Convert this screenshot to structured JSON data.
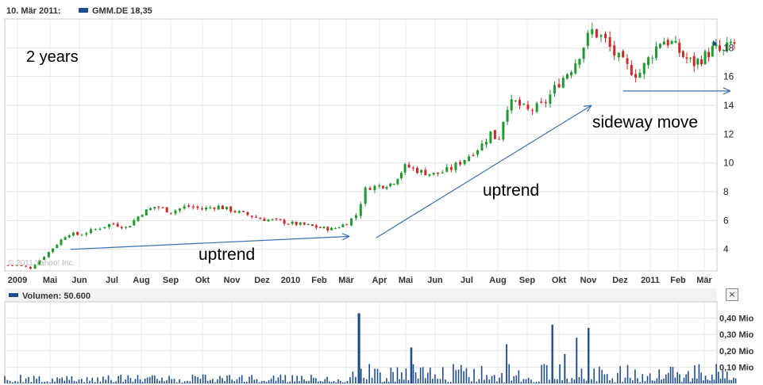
{
  "header": {
    "date": "10. Mär 2011:",
    "ticker_label": "GMM.DE 18,35",
    "series_color": "#1f4e8c"
  },
  "watermark": "© 2011 Yahoo! Inc.",
  "annotations": {
    "period": "2 years",
    "uptrend_1": "uptrend",
    "uptrend_2": "uptrend",
    "sideways": "sideway move"
  },
  "volume_panel": {
    "label": "Volumen: 50.600",
    "close_icon": "close-icon",
    "close_glyph": "×"
  },
  "chart_data": [
    {
      "type": "candlestick",
      "ylim": [
        2.5,
        20
      ],
      "y_ticks": [
        "4",
        "6",
        "8",
        "10",
        "12",
        "14",
        "16",
        "18"
      ],
      "x_ticks": [
        "2009",
        "Mai",
        "Jun",
        "Jul",
        "Aug",
        "Sep",
        "Okt",
        "Nov",
        "Dez",
        "2010",
        "Feb",
        "Mär",
        "Apr",
        "Mai",
        "Jun",
        "Jul",
        "Aug",
        "Sep",
        "Okt",
        "Nov",
        "Dez",
        "2011",
        "Feb",
        "Mär"
      ],
      "up_color": "#1e9a2e",
      "down_color": "#cc2a2a",
      "price_path": [
        [
          0,
          2.9
        ],
        [
          0.4,
          2.7
        ],
        [
          0.8,
          3.5
        ],
        [
          1.2,
          4.3
        ],
        [
          1.6,
          5.1
        ],
        [
          2.0,
          5.0
        ],
        [
          2.5,
          5.4
        ],
        [
          3.0,
          5.8
        ],
        [
          3.5,
          5.5
        ],
        [
          4.0,
          6.5
        ],
        [
          4.5,
          7.0
        ],
        [
          5.0,
          6.6
        ],
        [
          5.5,
          7.0
        ],
        [
          6.0,
          6.8
        ],
        [
          6.5,
          7.0
        ],
        [
          7.0,
          6.7
        ],
        [
          7.5,
          6.4
        ],
        [
          8.0,
          6.1
        ],
        [
          8.5,
          6.0
        ],
        [
          9.0,
          5.8
        ],
        [
          9.5,
          5.7
        ],
        [
          10.0,
          5.5
        ],
        [
          10.5,
          5.4
        ],
        [
          11.0,
          5.8
        ],
        [
          11.3,
          6.4
        ],
        [
          11.6,
          8.3
        ],
        [
          12.0,
          8.4
        ],
        [
          12.5,
          8.6
        ],
        [
          13.0,
          9.8
        ],
        [
          13.5,
          9.4
        ],
        [
          14.0,
          9.2
        ],
        [
          14.5,
          9.6
        ],
        [
          15.0,
          10.4
        ],
        [
          15.5,
          11.3
        ],
        [
          15.8,
          12.2
        ],
        [
          16.0,
          11.4
        ],
        [
          16.3,
          14.0
        ],
        [
          16.6,
          14.2
        ],
        [
          17.0,
          13.6
        ],
        [
          17.5,
          14.0
        ],
        [
          18.0,
          15.6
        ],
        [
          18.5,
          16.8
        ],
        [
          18.8,
          18.0
        ],
        [
          19.1,
          19.2
        ],
        [
          19.5,
          18.6
        ],
        [
          19.8,
          17.6
        ],
        [
          20.2,
          16.7
        ],
        [
          20.6,
          16.1
        ],
        [
          21.0,
          17.4
        ],
        [
          21.4,
          18.6
        ],
        [
          21.8,
          18.3
        ],
        [
          22.2,
          17.4
        ],
        [
          22.6,
          16.9
        ],
        [
          23.0,
          17.4
        ],
        [
          23.4,
          18.0
        ],
        [
          23.7,
          17.6
        ],
        [
          24.0,
          18.3
        ]
      ],
      "candle_count": 176,
      "trend_lines": [
        {
          "from": [
            1.7,
            4.0
          ],
          "to": [
            11.1,
            4.9
          ]
        },
        {
          "from": [
            11.9,
            4.8
          ],
          "to": [
            19.1,
            14.0
          ]
        },
        {
          "from": [
            20.1,
            15.0
          ],
          "to": [
            24.0,
            15.0
          ]
        }
      ]
    },
    {
      "type": "bar",
      "ylim": [
        0,
        0.5
      ],
      "y_ticks": [
        "0,10 Mio",
        "0,20 Mio",
        "0,30 Mio",
        "0,40 Mio"
      ],
      "spikes": [
        {
          "x": 11.4,
          "value": 0.43
        },
        {
          "x": 17.8,
          "value": 0.36
        },
        {
          "x": 19.0,
          "value": 0.34
        },
        {
          "x": 18.6,
          "value": 0.28
        },
        {
          "x": 13.2,
          "value": 0.22
        },
        {
          "x": 16.3,
          "value": 0.24
        },
        {
          "x": 18.2,
          "value": 0.18
        }
      ],
      "baseline_range": [
        0.02,
        0.12
      ]
    }
  ]
}
